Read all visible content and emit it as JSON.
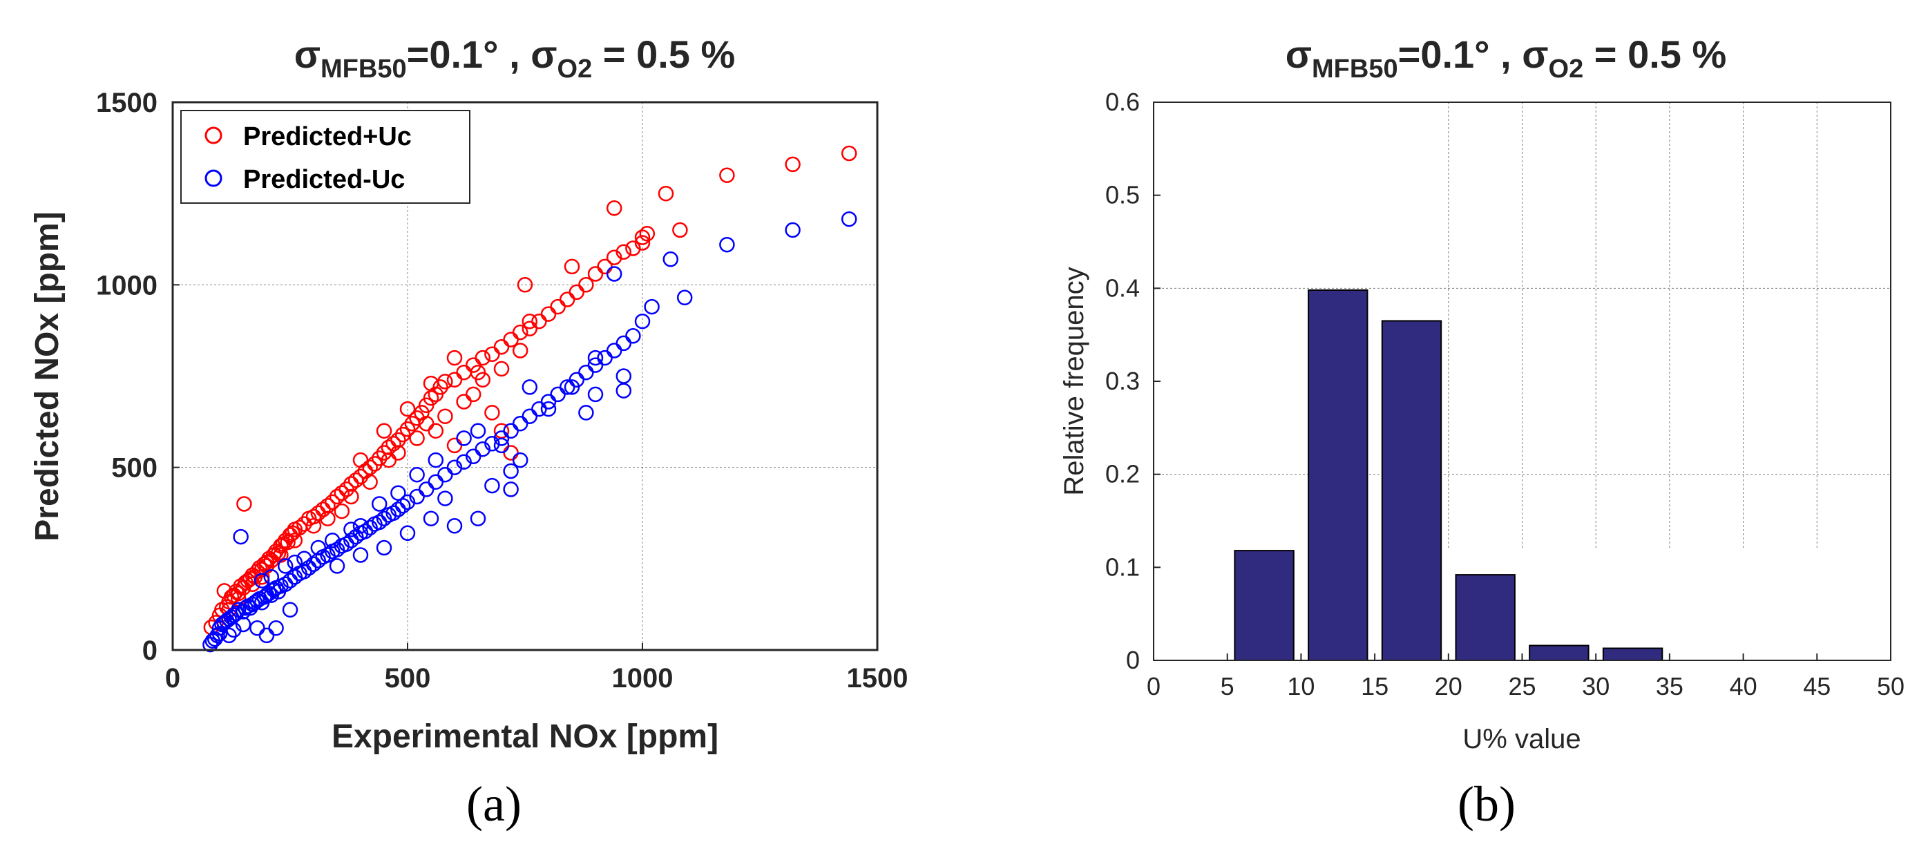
{
  "colors": {
    "red": "#ff0000",
    "blue": "#0000ff",
    "bar": "#312b7f",
    "axis": "#262626"
  },
  "chart_data": [
    {
      "type": "scatter",
      "panel": "(a)",
      "title": {
        "sigma1": "σ",
        "sub1": "MFB50",
        "mid": "=0.1° , σ",
        "sub2": "O2",
        "end": " = 0.5 %"
      },
      "xlabel": "Experimental NOx [ppm]",
      "ylabel": "Predicted NOx [ppm]",
      "xlim": [
        0,
        1500
      ],
      "ylim": [
        0,
        1500
      ],
      "xticks": [
        0,
        500,
        1000,
        1500
      ],
      "yticks": [
        0,
        500,
        1000,
        1500
      ],
      "legend": {
        "position": "top-left",
        "entries": [
          "Predicted+Uc",
          "Predicted-Uc"
        ]
      },
      "series": [
        {
          "name": "Predicted+Uc",
          "color": "red",
          "points": [
            [
              82,
              62
            ],
            [
              92,
              75
            ],
            [
              100,
              95
            ],
            [
              105,
              110
            ],
            [
              110,
              162
            ],
            [
              115,
              118
            ],
            [
              120,
              132
            ],
            [
              125,
              145
            ],
            [
              130,
              150
            ],
            [
              135,
              160
            ],
            [
              140,
              155
            ],
            [
              145,
              175
            ],
            [
              150,
              170
            ],
            [
              152,
              400
            ],
            [
              155,
              185
            ],
            [
              160,
              190
            ],
            [
              165,
              195
            ],
            [
              170,
              205
            ],
            [
              175,
              200
            ],
            [
              180,
              215
            ],
            [
              185,
              225
            ],
            [
              190,
              220
            ],
            [
              195,
              235
            ],
            [
              200,
              240
            ],
            [
              205,
              250
            ],
            [
              210,
              245
            ],
            [
              215,
              260
            ],
            [
              220,
              270
            ],
            [
              225,
              265
            ],
            [
              230,
              285
            ],
            [
              235,
              290
            ],
            [
              240,
              300
            ],
            [
              245,
              295
            ],
            [
              250,
              315
            ],
            [
              255,
              320
            ],
            [
              260,
              330
            ],
            [
              270,
              335
            ],
            [
              280,
              345
            ],
            [
              290,
              360
            ],
            [
              300,
              365
            ],
            [
              310,
              375
            ],
            [
              320,
              385
            ],
            [
              330,
              395
            ],
            [
              340,
              405
            ],
            [
              350,
              420
            ],
            [
              360,
              430
            ],
            [
              370,
              440
            ],
            [
              380,
              455
            ],
            [
              390,
              465
            ],
            [
              400,
              475
            ],
            [
              410,
              490
            ],
            [
              420,
              500
            ],
            [
              430,
              510
            ],
            [
              440,
              525
            ],
            [
              450,
              540
            ],
            [
              460,
              555
            ],
            [
              470,
              565
            ],
            [
              480,
              575
            ],
            [
              490,
              590
            ],
            [
              500,
              605
            ],
            [
              510,
              620
            ],
            [
              520,
              635
            ],
            [
              530,
              650
            ],
            [
              540,
              670
            ],
            [
              550,
              690
            ],
            [
              560,
              700
            ],
            [
              570,
              720
            ],
            [
              580,
              735
            ],
            [
              600,
              740
            ],
            [
              620,
              760
            ],
            [
              640,
              780
            ],
            [
              660,
              800
            ],
            [
              680,
              810
            ],
            [
              700,
              830
            ],
            [
              720,
              850
            ],
            [
              740,
              870
            ],
            [
              760,
              880
            ],
            [
              780,
              900
            ],
            [
              800,
              920
            ],
            [
              820,
              940
            ],
            [
              840,
              960
            ],
            [
              860,
              980
            ],
            [
              880,
              1000
            ],
            [
              900,
              1030
            ],
            [
              920,
              1050
            ],
            [
              940,
              1075
            ],
            [
              960,
              1090
            ],
            [
              980,
              1100
            ],
            [
              1000,
              1115
            ],
            [
              1010,
              1140
            ],
            [
              1050,
              1250
            ],
            [
              1080,
              1150
            ],
            [
              1180,
              1300
            ],
            [
              1320,
              1330
            ],
            [
              1440,
              1360
            ],
            [
              400,
              520
            ],
            [
              450,
              600
            ],
            [
              500,
              660
            ],
            [
              550,
              730
            ],
            [
              600,
              800
            ],
            [
              650,
              760
            ],
            [
              700,
              770
            ],
            [
              720,
              540
            ],
            [
              750,
              1000
            ],
            [
              850,
              1050
            ],
            [
              940,
              1210
            ],
            [
              1000,
              1130
            ],
            [
              380,
              420
            ],
            [
              420,
              460
            ],
            [
              460,
              520
            ],
            [
              520,
              580
            ],
            [
              580,
              640
            ],
            [
              640,
              700
            ],
            [
              260,
              300
            ],
            [
              300,
              340
            ],
            [
              330,
              360
            ],
            [
              360,
              380
            ],
            [
              200,
              230
            ],
            [
              230,
              260
            ],
            [
              170,
              180
            ],
            [
              190,
              200
            ],
            [
              140,
              140
            ],
            [
              120,
              110
            ],
            [
              700,
              600
            ],
            [
              680,
              650
            ],
            [
              740,
              820
            ],
            [
              760,
              900
            ],
            [
              620,
              680
            ],
            [
              660,
              740
            ],
            [
              600,
              560
            ],
            [
              560,
              600
            ],
            [
              540,
              620
            ],
            [
              480,
              540
            ]
          ]
        },
        {
          "name": "Predicted-Uc",
          "color": "blue",
          "points": [
            [
              80,
              15
            ],
            [
              85,
              25
            ],
            [
              90,
              30
            ],
            [
              95,
              40
            ],
            [
              100,
              60
            ],
            [
              105,
              70
            ],
            [
              110,
              75
            ],
            [
              115,
              80
            ],
            [
              120,
              85
            ],
            [
              125,
              90
            ],
            [
              130,
              95
            ],
            [
              135,
              100
            ],
            [
              140,
              110
            ],
            [
              145,
              310
            ],
            [
              150,
              105
            ],
            [
              155,
              115
            ],
            [
              160,
              120
            ],
            [
              165,
              115
            ],
            [
              170,
              125
            ],
            [
              175,
              130
            ],
            [
              180,
              135
            ],
            [
              185,
              140
            ],
            [
              190,
              130
            ],
            [
              195,
              145
            ],
            [
              200,
              150
            ],
            [
              205,
              155
            ],
            [
              210,
              150
            ],
            [
              215,
              165
            ],
            [
              220,
              170
            ],
            [
              225,
              160
            ],
            [
              230,
              175
            ],
            [
              240,
              180
            ],
            [
              250,
              190
            ],
            [
              260,
              200
            ],
            [
              270,
              210
            ],
            [
              280,
              215
            ],
            [
              290,
              225
            ],
            [
              300,
              235
            ],
            [
              310,
              245
            ],
            [
              320,
              255
            ],
            [
              330,
              260
            ],
            [
              340,
              270
            ],
            [
              350,
              275
            ],
            [
              360,
              285
            ],
            [
              370,
              290
            ],
            [
              380,
              300
            ],
            [
              390,
              310
            ],
            [
              400,
              320
            ],
            [
              410,
              325
            ],
            [
              420,
              335
            ],
            [
              430,
              345
            ],
            [
              440,
              350
            ],
            [
              450,
              360
            ],
            [
              460,
              370
            ],
            [
              470,
              375
            ],
            [
              480,
              385
            ],
            [
              490,
              395
            ],
            [
              500,
              405
            ],
            [
              520,
              420
            ],
            [
              540,
              440
            ],
            [
              560,
              460
            ],
            [
              580,
              480
            ],
            [
              600,
              500
            ],
            [
              620,
              515
            ],
            [
              640,
              530
            ],
            [
              660,
              550
            ],
            [
              680,
              565
            ],
            [
              700,
              580
            ],
            [
              720,
              600
            ],
            [
              740,
              620
            ],
            [
              760,
              640
            ],
            [
              780,
              660
            ],
            [
              800,
              680
            ],
            [
              820,
              700
            ],
            [
              840,
              720
            ],
            [
              860,
              740
            ],
            [
              880,
              760
            ],
            [
              900,
              780
            ],
            [
              920,
              800
            ],
            [
              940,
              820
            ],
            [
              960,
              840
            ],
            [
              980,
              860
            ],
            [
              1000,
              900
            ],
            [
              1020,
              940
            ],
            [
              1060,
              1070
            ],
            [
              1090,
              965
            ],
            [
              1180,
              1110
            ],
            [
              1320,
              1150
            ],
            [
              1440,
              1180
            ],
            [
              100,
              45
            ],
            [
              150,
              70
            ],
            [
              200,
              40
            ],
            [
              220,
              60
            ],
            [
              250,
              110
            ],
            [
              180,
              60
            ],
            [
              130,
              55
            ],
            [
              120,
              40
            ],
            [
              350,
              230
            ],
            [
              400,
              260
            ],
            [
              450,
              280
            ],
            [
              500,
              320
            ],
            [
              550,
              360
            ],
            [
              580,
              415
            ],
            [
              600,
              340
            ],
            [
              650,
              360
            ],
            [
              680,
              450
            ],
            [
              720,
              440
            ],
            [
              720,
              490
            ],
            [
              760,
              720
            ],
            [
              850,
              720
            ],
            [
              900,
              700
            ],
            [
              960,
              710
            ],
            [
              940,
              1030
            ],
            [
              960,
              750
            ],
            [
              900,
              800
            ],
            [
              880,
              650
            ],
            [
              800,
              660
            ],
            [
              740,
              520
            ],
            [
              700,
              560
            ],
            [
              650,
              600
            ],
            [
              620,
              580
            ],
            [
              560,
              520
            ],
            [
              520,
              480
            ],
            [
              480,
              430
            ],
            [
              440,
              400
            ],
            [
              400,
              340
            ],
            [
              380,
              330
            ],
            [
              340,
              300
            ],
            [
              310,
              280
            ],
            [
              280,
              250
            ],
            [
              260,
              240
            ],
            [
              240,
              230
            ],
            [
              210,
              200
            ],
            [
              190,
              190
            ]
          ]
        }
      ]
    },
    {
      "type": "bar",
      "panel": "(b)",
      "title": {
        "sigma1": "σ",
        "sub1": "MFB50",
        "mid": "=0.1° , σ",
        "sub2": "O2",
        "end": " = 0.5 %"
      },
      "xlabel": "U% value",
      "ylabel": "Relative frequency",
      "xlim": [
        0,
        50
      ],
      "ylim": [
        0,
        0.6
      ],
      "xticks": [
        0,
        5,
        10,
        15,
        20,
        25,
        30,
        35,
        40,
        45,
        50
      ],
      "yticks": [
        0,
        0.1,
        0.2,
        0.3,
        0.4,
        0.5,
        0.6
      ],
      "bin_width": 5,
      "bins": [
        {
          "center": 7.5,
          "value": 0.118
        },
        {
          "center": 12.5,
          "value": 0.398
        },
        {
          "center": 17.5,
          "value": 0.365
        },
        {
          "center": 22.5,
          "value": 0.092
        },
        {
          "center": 27.5,
          "value": 0.016
        },
        {
          "center": 32.5,
          "value": 0.013
        }
      ]
    }
  ]
}
